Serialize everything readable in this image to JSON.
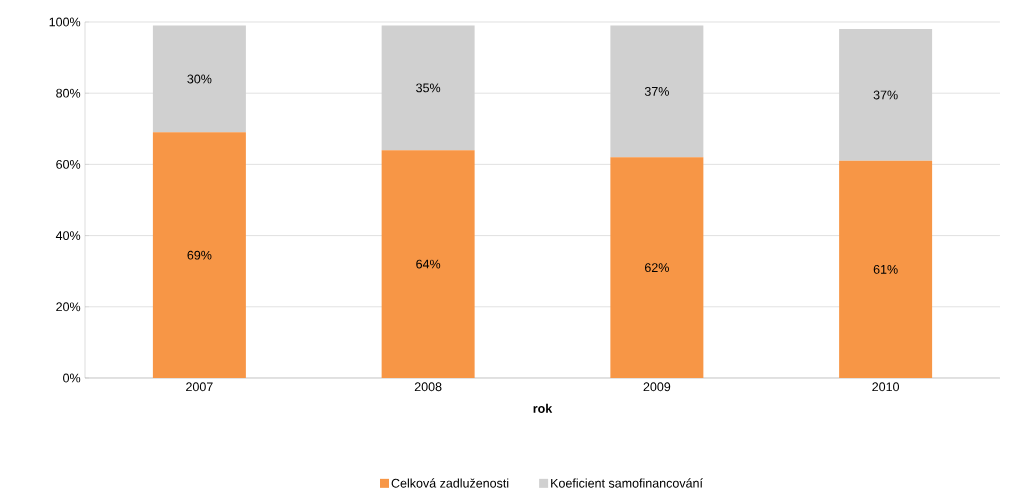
{
  "chart_data": {
    "type": "bar",
    "stacked": true,
    "xlabel": "rok",
    "categories": [
      "2007",
      "2008",
      "2009",
      "2010"
    ],
    "series": [
      {
        "name": "Celková zadluženosti",
        "color": "#f79646",
        "values": [
          69,
          64,
          62,
          61
        ],
        "value_labels": [
          "69%",
          "64%",
          "62%",
          "61%"
        ]
      },
      {
        "name": "Koeficient samofinancování",
        "color": "#d0d0d0",
        "values": [
          30,
          35,
          37,
          37
        ],
        "value_labels": [
          "30%",
          "35%",
          "37%",
          "37%"
        ]
      }
    ],
    "ylim": [
      0,
      100
    ],
    "yticks": [
      {
        "value": 0,
        "label": "0%"
      },
      {
        "value": 20,
        "label": "20%"
      },
      {
        "value": 40,
        "label": "40%"
      },
      {
        "value": 60,
        "label": "60%"
      },
      {
        "value": 80,
        "label": "80%"
      },
      {
        "value": 100,
        "label": "100%"
      }
    ],
    "grid": "y",
    "legend": "bottom"
  }
}
